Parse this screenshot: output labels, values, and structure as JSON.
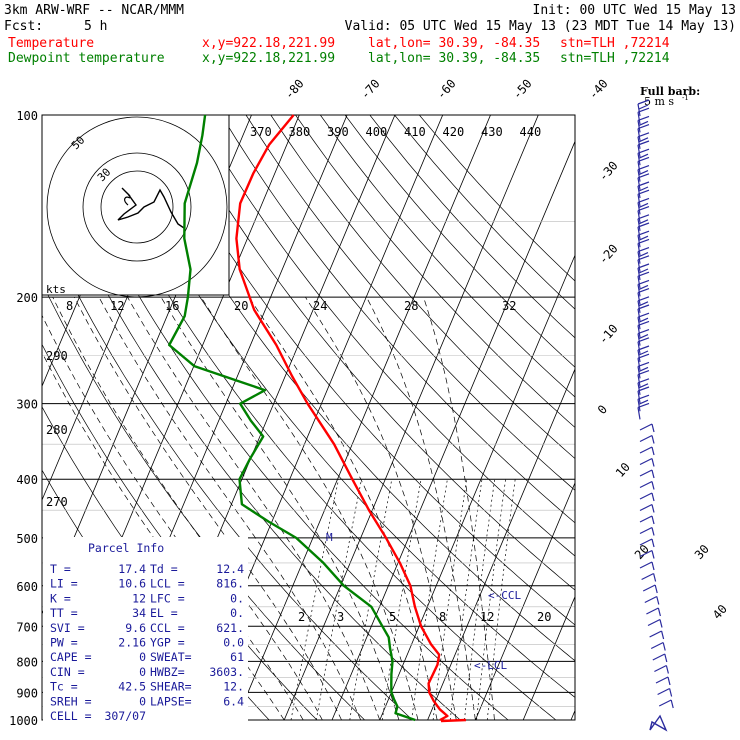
{
  "header": {
    "model": "3km ARW-WRF -- NCAR/MMM",
    "init": "Init: 00 UTC Wed 15 May 13",
    "fcst_label": "Fcst:",
    "fcst_value": "5 h",
    "valid": "Valid: 05 UTC Wed 15 May 13 (23 MDT Tue 14 May 13)",
    "temp_label": "Temperature",
    "temp_xy": "x,y=922.18,221.99",
    "temp_latlon": "lat,lon= 30.39, -84.35",
    "temp_stn": "stn=TLH ,72214",
    "dew_label": "Dewpoint temperature",
    "dew_xy": "x,y=922.18,221.99",
    "dew_latlon": "lat,lon= 30.39, -84.35",
    "dew_stn": "stn=TLH ,72214"
  },
  "colors": {
    "temperature": "#ff0000",
    "dewpoint": "#008000",
    "parcel_box": "#1a1a9a",
    "wind": "#2b2b9e"
  },
  "barb_legend": {
    "title": "Full barb:",
    "value": "5 m s",
    "unit_sup": "-1"
  },
  "hodograph": {
    "unit": "kts",
    "ring_labels": [
      "50",
      "30"
    ]
  },
  "parcel_info": {
    "title": "Parcel Info",
    "rows": [
      {
        "l": "T  =",
        "lv": "17.4",
        "r": "Td =",
        "rv": "12.4"
      },
      {
        "l": "LI =",
        "lv": "10.6",
        "r": "LCL =",
        "rv": "816."
      },
      {
        "l": "K  =",
        "lv": "12",
        "r": "LFC =",
        "rv": "0."
      },
      {
        "l": "TT =",
        "lv": "34",
        "r": "EL  =",
        "rv": "0."
      },
      {
        "l": "SVI =",
        "lv": "9.6",
        "r": "CCL =",
        "rv": "621."
      },
      {
        "l": "PW =",
        "lv": "2.16",
        "r": "YGP =",
        "rv": "0.0"
      },
      {
        "l": "CAPE =",
        "lv": "0",
        "r": "SWEAT=",
        "rv": "61"
      },
      {
        "l": "CIN =",
        "lv": "0",
        "r": "HWBZ=",
        "rv": "3603."
      },
      {
        "l": "Tc =",
        "lv": "42.5",
        "r": "SHEAR=",
        "rv": "12."
      },
      {
        "l": "SREH =",
        "lv": "0",
        "r": "LAPSE=",
        "rv": "6.4"
      },
      {
        "l": "CELL =",
        "lv": "307/07",
        "r": "",
        "rv": ""
      }
    ]
  },
  "annotations": {
    "ccl": "<-CCL",
    "lcl": "<-LCL",
    "melt": "M"
  },
  "chart_data": {
    "type": "line",
    "title": "",
    "xlabel": "",
    "ylabel": "",
    "pressure_levels": [
      100,
      200,
      300,
      400,
      500,
      600,
      700,
      800,
      900,
      1000
    ],
    "isotherm_labels": [
      "-80",
      "-70",
      "-60",
      "-50",
      "-40",
      "-30",
      "-20",
      "-10",
      "0",
      "10",
      "20",
      "30",
      "40"
    ],
    "theta_labels_top": [
      "370",
      "380",
      "390",
      "400",
      "410",
      "420",
      "430",
      "440"
    ],
    "theta_labels_left": [
      "290",
      "280",
      "270"
    ],
    "mixing_ratio_labels_upper": [
      "8",
      "12",
      "16",
      "20",
      "24",
      "28",
      "32"
    ],
    "mixing_ratio_labels_lower": [
      "2",
      "3",
      "5",
      "8",
      "12",
      "20"
    ],
    "series": [
      {
        "name": "Temperature",
        "color": "#ff0000",
        "points": [
          [
            1000,
            22.6
          ],
          [
            985,
            23.8
          ],
          [
            960,
            21.6
          ],
          [
            930,
            19.6
          ],
          [
            900,
            17.9
          ],
          [
            870,
            17.0
          ],
          [
            840,
            17.1
          ],
          [
            810,
            17.2
          ],
          [
            780,
            16.7
          ],
          [
            750,
            14.1
          ],
          [
            700,
            10.4
          ],
          [
            650,
            7.4
          ],
          [
            600,
            4.6
          ],
          [
            550,
            0.4
          ],
          [
            500,
            -4.7
          ],
          [
            450,
            -10.7
          ],
          [
            400,
            -16.9
          ],
          [
            350,
            -23.8
          ],
          [
            300,
            -32.9
          ],
          [
            270,
            -38.6
          ],
          [
            240,
            -44.6
          ],
          [
            210,
            -52.3
          ],
          [
            180,
            -58.9
          ],
          [
            160,
            -62.3
          ],
          [
            140,
            -64.6
          ],
          [
            125,
            -64.5
          ],
          [
            112,
            -63.7
          ],
          [
            100,
            -61.2
          ]
        ]
      },
      {
        "name": "Dewpoint temperature",
        "color": "#008000",
        "points": [
          [
            1000,
            17.4
          ],
          [
            975,
            12.7
          ],
          [
            950,
            12.5
          ],
          [
            925,
            11.2
          ],
          [
            900,
            10.0
          ],
          [
            870,
            9.2
          ],
          [
            840,
            8.4
          ],
          [
            800,
            7.5
          ],
          [
            760,
            5.8
          ],
          [
            730,
            4.6
          ],
          [
            700,
            2.3
          ],
          [
            650,
            -1.7
          ],
          [
            600,
            -9.3
          ],
          [
            550,
            -15.6
          ],
          [
            500,
            -23.5
          ],
          [
            470,
            -30.7
          ],
          [
            440,
            -37.8
          ],
          [
            400,
            -40.5
          ],
          [
            370,
            -40.1
          ],
          [
            340,
            -39.3
          ],
          [
            320,
            -43.3
          ],
          [
            300,
            -47.0
          ],
          [
            285,
            -43.0
          ],
          [
            260,
            -59.9
          ],
          [
            240,
            -67.0
          ],
          [
            215,
            -66.3
          ],
          [
            200,
            -67.3
          ],
          [
            180,
            -69.2
          ],
          [
            160,
            -73.2
          ],
          [
            140,
            -76.2
          ],
          [
            120,
            -77.2
          ],
          [
            108,
            -78.5
          ],
          [
            100,
            -79.7
          ]
        ]
      }
    ]
  }
}
